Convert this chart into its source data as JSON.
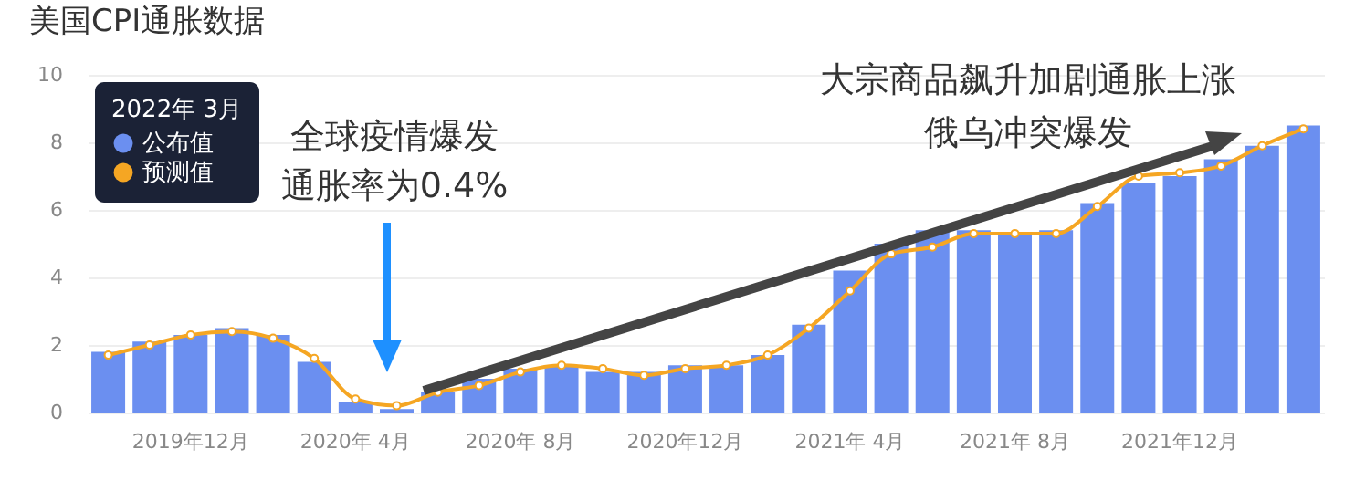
{
  "chart_data": {
    "type": "bar",
    "title": "美国CPI通胀数据",
    "categories": [
      null,
      null,
      "2019年12月",
      null,
      null,
      null,
      "2020年 4月",
      null,
      null,
      null,
      "2020年 8月",
      null,
      null,
      null,
      "2020年12月",
      null,
      null,
      null,
      "2021年 4月",
      null,
      null,
      null,
      "2021年 8月",
      null,
      null,
      null,
      "2021年12月",
      null,
      null,
      null
    ],
    "series": [
      {
        "name": "公布值",
        "color": "#6b8ff0",
        "values": [
          1.8,
          2.1,
          2.3,
          2.5,
          2.3,
          1.5,
          0.3,
          0.1,
          0.6,
          1.0,
          1.3,
          1.4,
          1.2,
          1.2,
          1.4,
          1.4,
          1.7,
          2.6,
          4.2,
          5.0,
          5.4,
          5.4,
          5.3,
          5.4,
          6.2,
          6.8,
          7.0,
          7.5,
          7.9,
          8.5
        ]
      },
      {
        "name": "预测值",
        "type": "line",
        "color": "#f5a623",
        "values": [
          1.7,
          2.0,
          2.3,
          2.4,
          2.2,
          1.6,
          0.4,
          0.2,
          0.6,
          0.8,
          1.2,
          1.4,
          1.3,
          1.1,
          1.3,
          1.4,
          1.7,
          2.5,
          3.6,
          4.7,
          4.9,
          5.3,
          5.3,
          5.3,
          6.1,
          7.0,
          7.1,
          7.3,
          7.9,
          8.4
        ]
      }
    ],
    "ylim": [
      0,
      10
    ],
    "yticks": [
      0,
      2,
      4,
      6,
      8,
      10
    ],
    "grid": "y",
    "marker": "circle",
    "line_style": "solid",
    "legend": "top left",
    "legend_title": "2022年 3月",
    "annotations": [
      "全球疫情爆发",
      "通胀率为0.4%",
      "大宗商品飙升加剧通胀上涨",
      "俄乌冲突爆发"
    ]
  }
}
